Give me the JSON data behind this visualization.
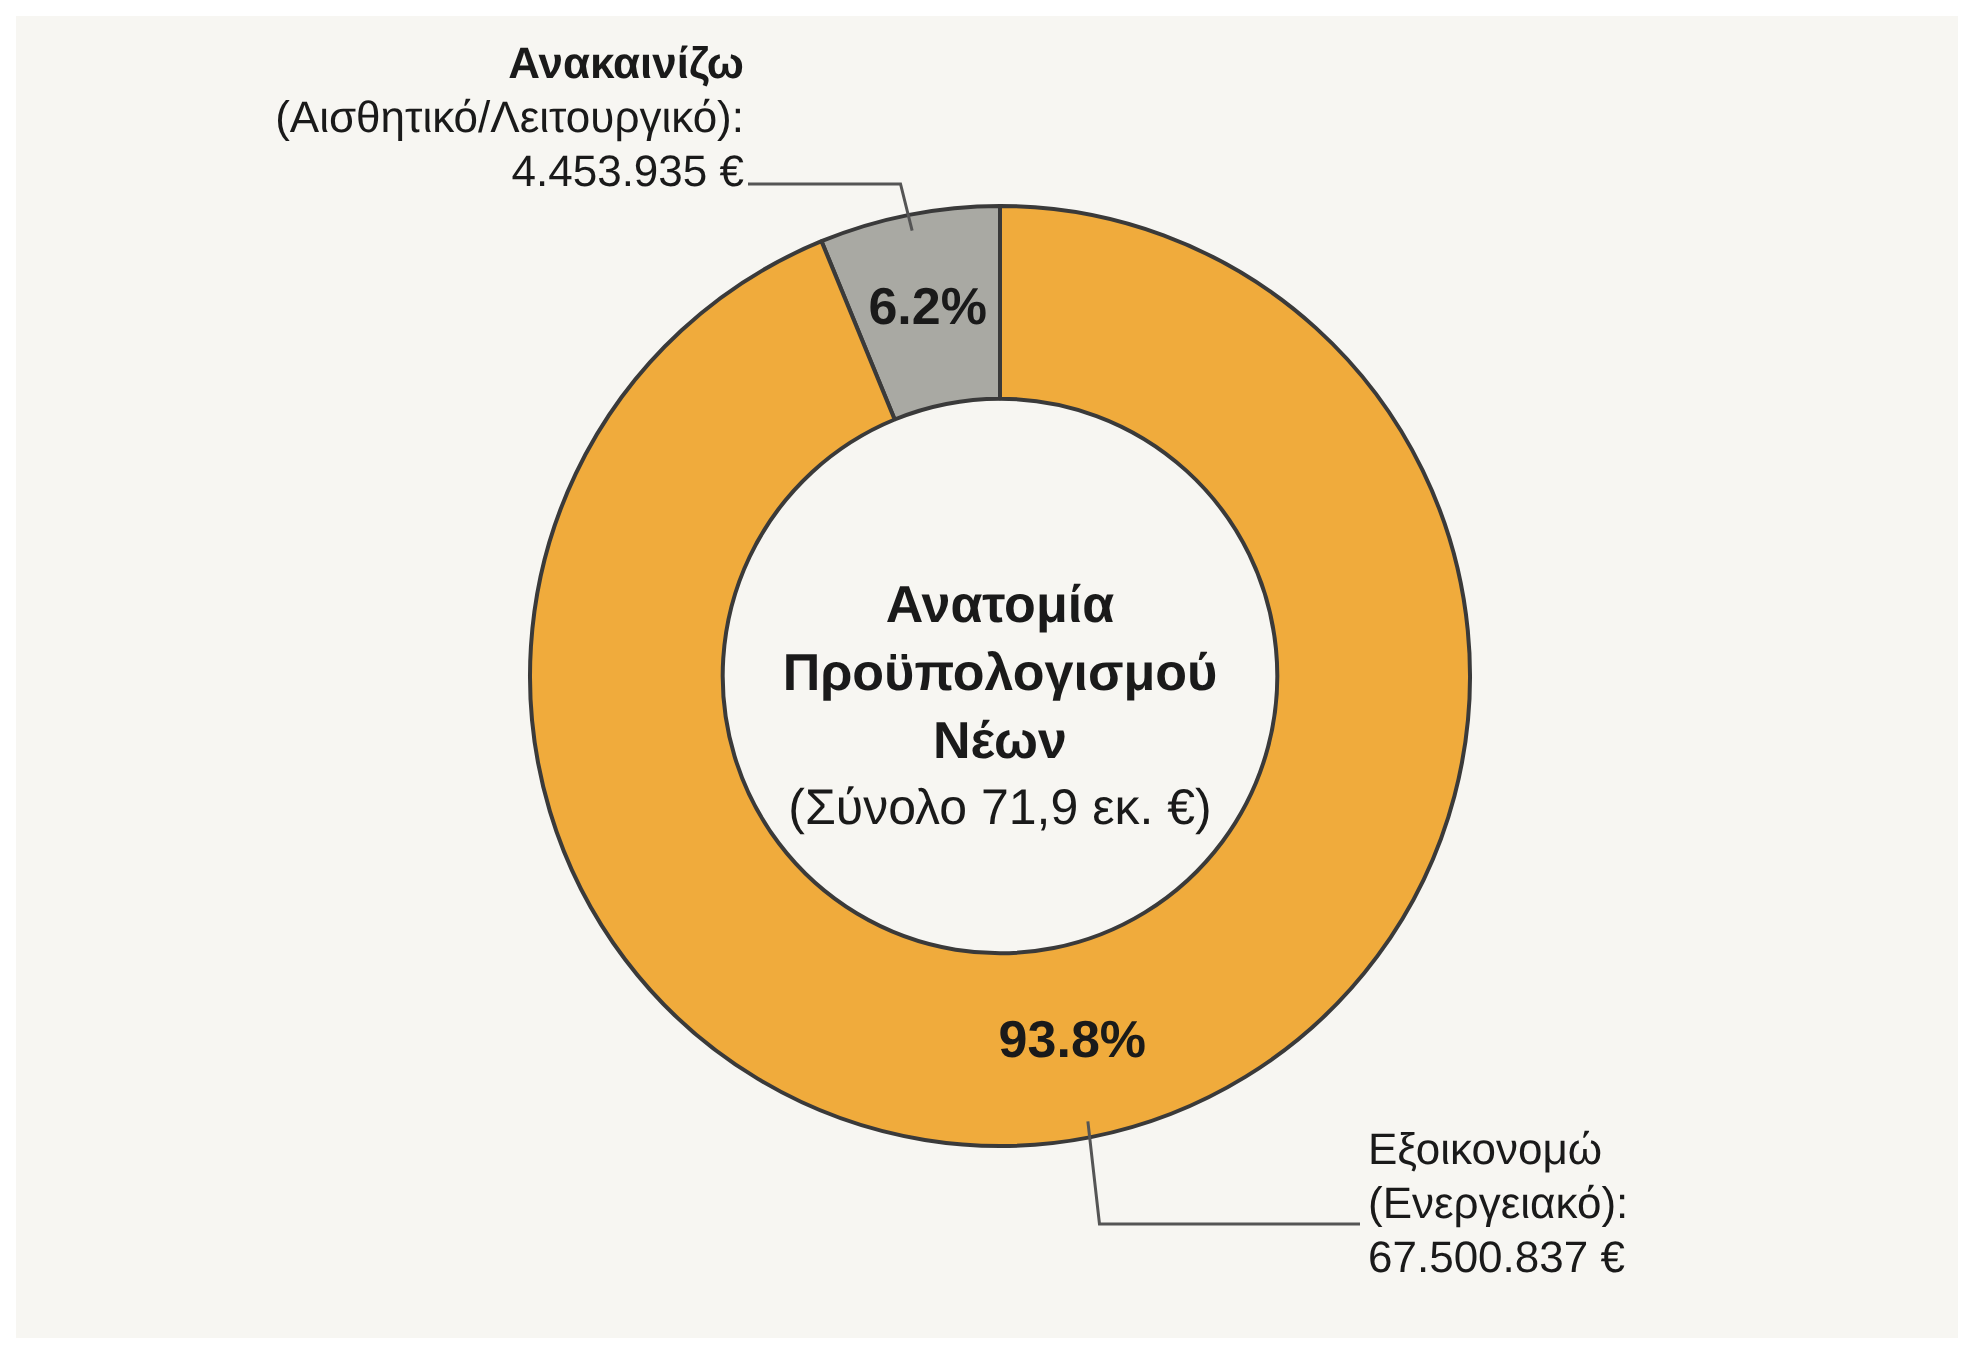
{
  "chart_data": {
    "type": "donut",
    "title": "Ανατομία Προϋπολογισμού Νέων",
    "subtitle": "(Σύνολο 71,9 εκ. €)",
    "categories": [
      "Ανακαινίζω\n(Αισθητικό/Λειτουργικό):\n4.453.935 €",
      "Εξοικονομώ\n(Ενεργειακό):\n67.500.837 €"
    ],
    "values": [
      6.2,
      93.8
    ],
    "colors": [
      "#a9a9a3",
      "#f0ab3c"
    ],
    "value_labels": [
      "6.2%",
      "93.8%"
    ],
    "legend": false
  }
}
